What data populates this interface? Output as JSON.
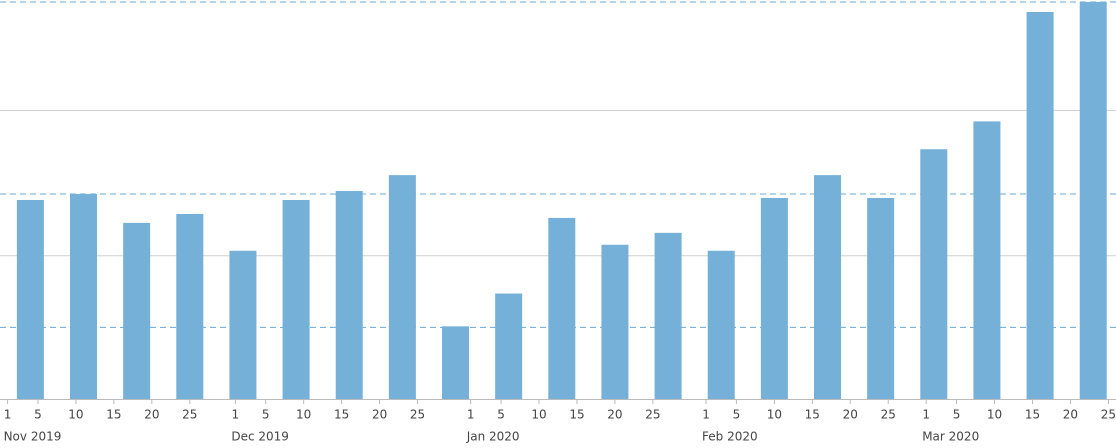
{
  "chart_data": {
    "type": "bar",
    "color": "#74b0d8",
    "x": [
      "2019-11-04",
      "2019-11-11",
      "2019-11-18",
      "2019-11-25",
      "2019-12-02",
      "2019-12-09",
      "2019-12-16",
      "2019-12-23",
      "2019-12-30",
      "2020-01-06",
      "2020-01-13",
      "2020-01-20",
      "2020-01-27",
      "2020-02-03",
      "2020-02-10",
      "2020-02-17",
      "2020-02-24",
      "2020-03-02",
      "2020-03-09",
      "2020-03-16",
      "2020-03-23"
    ],
    "values": [
      200,
      206,
      177,
      186,
      149,
      200,
      209,
      225,
      73,
      106,
      182,
      155,
      167,
      149,
      202,
      225,
      202,
      251,
      279,
      389,
      399
    ],
    "xlim": [
      "2019-10-31",
      "2020-03-26"
    ],
    "xticks": [
      {
        "value": "2019-11-01",
        "label": "1"
      },
      {
        "value": "2019-11-05",
        "label": "5"
      },
      {
        "value": "2019-11-10",
        "label": "10"
      },
      {
        "value": "2019-11-15",
        "label": "15"
      },
      {
        "value": "2019-11-20",
        "label": "20"
      },
      {
        "value": "2019-11-25",
        "label": "25"
      },
      {
        "value": "2019-12-01",
        "label": "1"
      },
      {
        "value": "2019-12-05",
        "label": "5"
      },
      {
        "value": "2019-12-10",
        "label": "10"
      },
      {
        "value": "2019-12-15",
        "label": "15"
      },
      {
        "value": "2019-12-20",
        "label": "20"
      },
      {
        "value": "2019-12-25",
        "label": "25"
      },
      {
        "value": "2020-01-01",
        "label": "1"
      },
      {
        "value": "2020-01-05",
        "label": "5"
      },
      {
        "value": "2020-01-10",
        "label": "10"
      },
      {
        "value": "2020-01-15",
        "label": "15"
      },
      {
        "value": "2020-01-20",
        "label": "20"
      },
      {
        "value": "2020-01-25",
        "label": "25"
      },
      {
        "value": "2020-02-01",
        "label": "1"
      },
      {
        "value": "2020-02-05",
        "label": "5"
      },
      {
        "value": "2020-02-10",
        "label": "10"
      },
      {
        "value": "2020-02-15",
        "label": "15"
      },
      {
        "value": "2020-02-20",
        "label": "20"
      },
      {
        "value": "2020-02-25",
        "label": "25"
      },
      {
        "value": "2020-03-01",
        "label": "1"
      },
      {
        "value": "2020-03-05",
        "label": "5"
      },
      {
        "value": "2020-03-10",
        "label": "10"
      },
      {
        "value": "2020-03-15",
        "label": "15"
      },
      {
        "value": "2020-03-20",
        "label": "20"
      },
      {
        "value": "2020-03-25",
        "label": "25"
      }
    ],
    "month_labels": [
      {
        "value": "2019-11-01",
        "label": "Nov 2019"
      },
      {
        "value": "2019-12-01",
        "label": "Dec 2019"
      },
      {
        "value": "2020-01-01",
        "label": "Jan 2020"
      },
      {
        "value": "2020-02-01",
        "label": "Feb 2020"
      },
      {
        "value": "2020-03-01",
        "label": "Mar 2020"
      }
    ],
    "ylim": [
      0,
      400
    ],
    "yticks": [
      144,
      290
    ],
    "reference_lines": [
      72,
      206,
      399
    ],
    "grid": true
  }
}
